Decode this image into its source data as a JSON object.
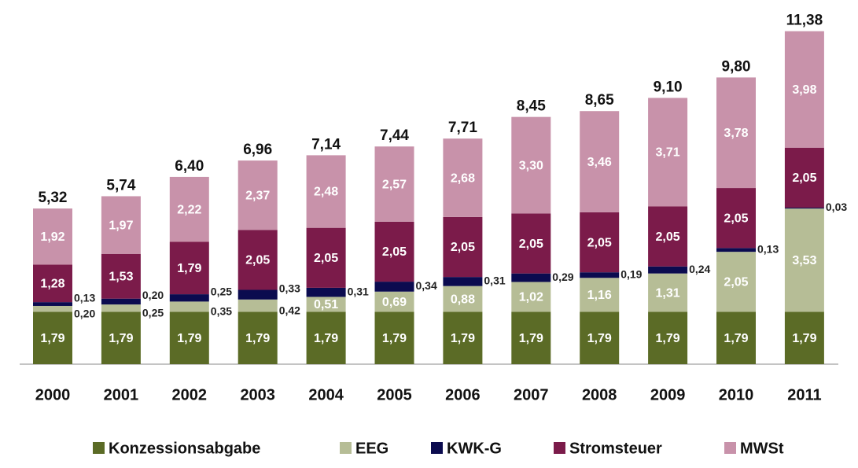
{
  "chart_data": {
    "type": "stacked_bar",
    "categories": [
      "2000",
      "2001",
      "2002",
      "2003",
      "2004",
      "2005",
      "2006",
      "2007",
      "2008",
      "2009",
      "2010",
      "2011"
    ],
    "series": [
      {
        "name": "Konzessionsabgabe",
        "color": "#5b6b26",
        "values": [
          1.79,
          1.79,
          1.79,
          1.79,
          1.79,
          1.79,
          1.79,
          1.79,
          1.79,
          1.79,
          1.79,
          1.79
        ],
        "value_labels": [
          "1,79",
          "1,79",
          "1,79",
          "1,79",
          "1,79",
          "1,79",
          "1,79",
          "1,79",
          "1,79",
          "1,79",
          "1,79",
          "1,79"
        ]
      },
      {
        "name": "EEG",
        "color": "#b6bd96",
        "values": [
          0.2,
          0.25,
          0.35,
          0.42,
          0.51,
          0.69,
          0.88,
          1.02,
          1.16,
          1.31,
          2.05,
          3.53
        ],
        "value_labels": [
          "0,20",
          "0,25",
          "0,35",
          "0,42",
          "0,51",
          "0,69",
          "0,88",
          "1,02",
          "1,16",
          "1,31",
          "2,05",
          "3,53"
        ]
      },
      {
        "name": "KWK-G",
        "color": "#0b0b4f",
        "values": [
          0.13,
          0.2,
          0.25,
          0.33,
          0.31,
          0.34,
          0.31,
          0.29,
          0.19,
          0.24,
          0.13,
          0.03
        ],
        "value_labels": [
          "0,13",
          "0,20",
          "0,25",
          "0,33",
          "0,31",
          "0,34",
          "0,31",
          "0,29",
          "0,19",
          "0,24",
          "0,13",
          "0,03"
        ]
      },
      {
        "name": "Stromsteuer",
        "color": "#7b1b4a",
        "values": [
          1.28,
          1.53,
          1.79,
          2.05,
          2.05,
          2.05,
          2.05,
          2.05,
          2.05,
          2.05,
          2.05,
          2.05
        ],
        "value_labels": [
          "1,28",
          "1,53",
          "1,79",
          "2,05",
          "2,05",
          "2,05",
          "2,05",
          "2,05",
          "2,05",
          "2,05",
          "2,05",
          "2,05"
        ]
      },
      {
        "name": "MWSt",
        "color": "#c892aa",
        "values": [
          1.92,
          1.97,
          2.22,
          2.37,
          2.48,
          2.57,
          2.68,
          3.3,
          3.46,
          3.71,
          3.78,
          3.98
        ],
        "value_labels": [
          "1,92",
          "1,97",
          "2,22",
          "2,37",
          "2,48",
          "2,57",
          "2,68",
          "3,30",
          "3,46",
          "3,71",
          "3,78",
          "3,98"
        ]
      }
    ],
    "totals": [
      5.32,
      5.74,
      6.4,
      6.96,
      7.14,
      7.44,
      7.71,
      8.45,
      8.65,
      9.1,
      9.8,
      11.38
    ],
    "total_labels": [
      "5,32",
      "5,74",
      "6,40",
      "6,96",
      "7,14",
      "7,44",
      "7,71",
      "8,45",
      "8,65",
      "9,10",
      "9,80",
      "11,38"
    ],
    "legend": "bottom"
  }
}
